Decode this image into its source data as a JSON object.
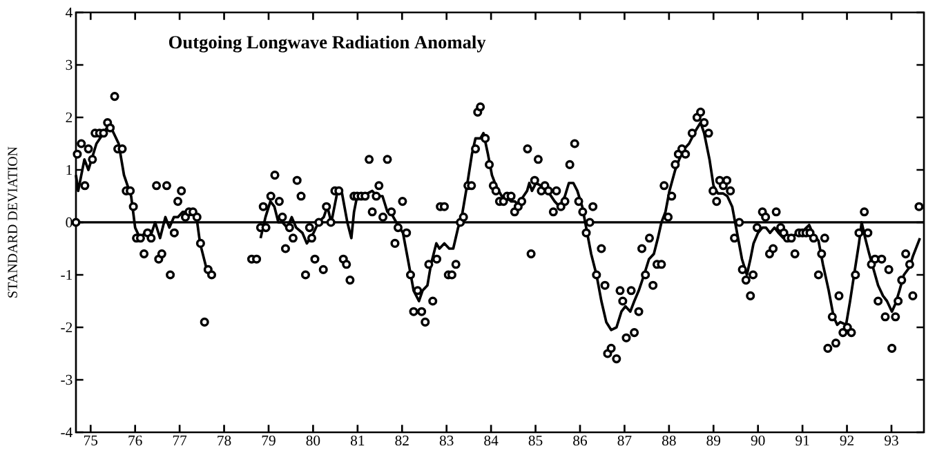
{
  "chart_data": {
    "type": "scatter",
    "title": "Outgoing Longwave Radiation Anomaly",
    "ylabel": "STANDARD DEVIATION",
    "xlim": [
      74.67,
      93.73
    ],
    "ylim": [
      -4,
      4
    ],
    "xticks": [
      75,
      76,
      77,
      78,
      79,
      80,
      81,
      82,
      83,
      84,
      85,
      86,
      87,
      88,
      89,
      90,
      91,
      92,
      93
    ],
    "yticks": [
      -4,
      -3,
      -2,
      -1,
      0,
      1,
      2,
      3,
      4
    ],
    "grid": false,
    "ref_lines": [
      {
        "axis": "y",
        "value": 0,
        "color": "#000000"
      }
    ],
    "series": [
      {
        "color": "#000000",
        "marker": "circle",
        "x": [
          74.67,
          74.7,
          74.79,
          74.87,
          74.95,
          75.04,
          75.1,
          75.2,
          75.29,
          75.38,
          75.44,
          75.54,
          75.61,
          75.71,
          75.8,
          75.89,
          75.96,
          76.03,
          76.12,
          76.2,
          76.28,
          76.36,
          76.48,
          76.53,
          76.6,
          76.71,
          76.79,
          76.88,
          76.96,
          77.04,
          77.13,
          77.21,
          77.3,
          77.39,
          77.47,
          77.56,
          77.64,
          77.72,
          78.62,
          78.73,
          78.82,
          78.88,
          78.94,
          79.05,
          79.14,
          79.24,
          79.31,
          79.38,
          79.47,
          79.55,
          79.64,
          79.73,
          79.83,
          79.92,
          79.97,
          80.04,
          80.13,
          80.23,
          80.3,
          80.4,
          80.49,
          80.58,
          80.68,
          80.75,
          80.83,
          80.92,
          80.99,
          81.08,
          81.17,
          81.26,
          81.33,
          81.42,
          81.48,
          81.57,
          81.67,
          81.76,
          81.84,
          81.91,
          82.01,
          82.1,
          82.19,
          82.26,
          82.35,
          82.44,
          82.52,
          82.6,
          82.69,
          82.78,
          82.86,
          82.95,
          83.04,
          83.12,
          83.21,
          83.31,
          83.38,
          83.48,
          83.56,
          83.65,
          83.7,
          83.76,
          83.87,
          83.96,
          84.05,
          84.11,
          84.19,
          84.28,
          84.36,
          84.45,
          84.53,
          84.61,
          84.69,
          84.82,
          84.9,
          84.98,
          85.06,
          85.13,
          85.21,
          85.29,
          85.4,
          85.47,
          85.57,
          85.66,
          85.77,
          85.88,
          85.97,
          86.06,
          86.14,
          86.22,
          86.29,
          86.37,
          86.48,
          86.56,
          86.62,
          86.7,
          86.82,
          86.9,
          86.96,
          87.04,
          87.15,
          87.22,
          87.32,
          87.39,
          87.47,
          87.56,
          87.64,
          87.73,
          87.83,
          87.89,
          87.98,
          88.06,
          88.14,
          88.21,
          88.29,
          88.37,
          88.52,
          88.63,
          88.71,
          88.79,
          88.89,
          88.99,
          89.07,
          89.14,
          89.22,
          89.3,
          89.38,
          89.47,
          89.58,
          89.65,
          89.73,
          89.83,
          89.89,
          89.98,
          90.1,
          90.17,
          90.26,
          90.34,
          90.41,
          90.51,
          90.58,
          90.66,
          90.75,
          90.83,
          90.92,
          91.0,
          91.08,
          91.17,
          91.25,
          91.36,
          91.43,
          91.5,
          91.57,
          91.67,
          91.75,
          91.82,
          91.91,
          92.01,
          92.1,
          92.19,
          92.27,
          92.39,
          92.47,
          92.55,
          92.63,
          92.7,
          92.78,
          92.86,
          92.94,
          93.01,
          93.09,
          93.15,
          93.23,
          93.32,
          93.41,
          93.48,
          93.62
        ],
        "values": [
          0,
          1.3,
          1.5,
          0.7,
          1.4,
          1.2,
          1.7,
          1.7,
          1.7,
          1.9,
          1.8,
          2.4,
          1.4,
          1.4,
          0.6,
          0.6,
          0.3,
          -0.3,
          -0.3,
          -0.6,
          -0.2,
          -0.3,
          0.7,
          -0.7,
          -0.6,
          0.7,
          -1.0,
          -0.2,
          0.4,
          0.6,
          0.1,
          0.2,
          0.2,
          0.1,
          -0.4,
          -1.9,
          -0.9,
          -1.0,
          -0.7,
          -0.7,
          -0.1,
          0.3,
          -0.1,
          0.5,
          0.9,
          0.4,
          0.1,
          -0.5,
          -0.1,
          -0.3,
          0.8,
          0.5,
          -1.0,
          -0.1,
          -0.3,
          -0.7,
          0.0,
          -0.9,
          0.3,
          0.0,
          0.6,
          0.6,
          -0.7,
          -0.8,
          -1.1,
          0.5,
          0.5,
          0.5,
          0.5,
          1.2,
          0.2,
          0.5,
          0.7,
          0.1,
          1.2,
          0.2,
          -0.4,
          -0.1,
          0.4,
          -0.2,
          -1.0,
          -1.7,
          -1.3,
          -1.7,
          -1.9,
          -0.8,
          -1.5,
          -0.7,
          0.3,
          0.3,
          -1.0,
          -1.0,
          -0.8,
          0.0,
          0.1,
          0.7,
          0.7,
          1.4,
          2.1,
          2.2,
          1.6,
          1.1,
          0.7,
          0.6,
          0.4,
          0.4,
          0.5,
          0.5,
          0.2,
          0.3,
          0.4,
          1.4,
          -0.6,
          0.8,
          1.2,
          0.6,
          0.7,
          0.6,
          0.2,
          0.6,
          0.3,
          0.4,
          1.1,
          1.5,
          0.4,
          0.2,
          -0.2,
          0.0,
          0.3,
          -1.0,
          -0.5,
          -1.2,
          -2.5,
          -2.4,
          -2.6,
          -1.3,
          -1.5,
          -2.2,
          -1.3,
          -2.1,
          -1.7,
          -0.5,
          -1.0,
          -0.3,
          -1.2,
          -0.8,
          -0.8,
          0.7,
          0.1,
          0.5,
          1.1,
          1.3,
          1.4,
          1.3,
          1.7,
          2.0,
          2.1,
          1.9,
          1.7,
          0.6,
          0.4,
          0.8,
          0.7,
          0.8,
          0.6,
          -0.3,
          0.0,
          -0.9,
          -1.1,
          -1.4,
          -1.0,
          -0.1,
          0.2,
          0.1,
          -0.6,
          -0.5,
          0.2,
          -0.1,
          -0.2,
          -0.3,
          -0.3,
          -0.6,
          -0.2,
          -0.2,
          -0.2,
          -0.2,
          -0.3,
          -1.0,
          -0.6,
          -0.3,
          -2.4,
          -1.8,
          -2.3,
          -1.4,
          -2.1,
          -2.0,
          -2.1,
          -1.0,
          -0.2,
          0.2,
          -0.2,
          -0.8,
          -0.7,
          -1.5,
          -0.7,
          -1.8,
          -0.9,
          -2.4,
          -1.8,
          -1.5,
          -1.1,
          -0.6,
          -0.8,
          -1.4,
          0.3
        ]
      },
      {
        "type": "line",
        "color": "#000000",
        "marker": "none",
        "line_style": "solid",
        "x": [
          74.67,
          74.72,
          74.86,
          74.95,
          75.13,
          75.29,
          75.4,
          75.49,
          75.63,
          75.75,
          75.91,
          76.0,
          76.11,
          76.22,
          76.33,
          76.45,
          76.56,
          76.68,
          76.77,
          76.87,
          76.96,
          77.07,
          77.15,
          77.3,
          77.38,
          77.46,
          77.61,
          77.69,
          78.2,
          78.82,
          78.93,
          79.04,
          79.13,
          79.22,
          79.31,
          79.42,
          79.52,
          79.62,
          79.76,
          79.86,
          80.01,
          80.12,
          80.24,
          80.32,
          80.41,
          80.55,
          80.64,
          80.77,
          80.86,
          80.92,
          80.99,
          81.11,
          81.22,
          81.33,
          81.44,
          81.56,
          81.67,
          81.74,
          81.87,
          82.02,
          82.13,
          82.26,
          82.38,
          82.46,
          82.57,
          82.65,
          82.77,
          82.84,
          82.95,
          83.06,
          83.15,
          83.26,
          83.34,
          83.46,
          83.57,
          83.65,
          83.76,
          83.83,
          83.93,
          84.02,
          84.11,
          84.24,
          84.31,
          84.39,
          84.45,
          84.53,
          84.61,
          84.73,
          84.81,
          84.86,
          84.92,
          85.01,
          85.12,
          85.27,
          85.43,
          85.54,
          85.66,
          85.75,
          85.85,
          85.94,
          86.05,
          86.16,
          86.25,
          86.37,
          86.48,
          86.59,
          86.7,
          86.82,
          86.93,
          87.02,
          87.13,
          87.22,
          87.32,
          87.44,
          87.55,
          87.66,
          87.75,
          87.83,
          87.92,
          88.01,
          88.14,
          88.23,
          88.34,
          88.45,
          88.6,
          88.71,
          88.79,
          88.91,
          89.0,
          89.1,
          89.22,
          89.31,
          89.42,
          89.53,
          89.64,
          89.75,
          89.83,
          89.9,
          90.0,
          90.1,
          90.18,
          90.27,
          90.37,
          90.46,
          90.57,
          90.69,
          90.8,
          90.92,
          91.03,
          91.15,
          91.25,
          91.36,
          91.46,
          91.59,
          91.7,
          91.78,
          91.85,
          91.98,
          92.07,
          92.16,
          92.27,
          92.33,
          92.41,
          92.5,
          92.6,
          92.7,
          92.81,
          92.9,
          93.01,
          93.09,
          93.18,
          93.28,
          93.41,
          93.48,
          93.64
        ],
        "values": [
          0.9,
          0.6,
          1.2,
          1.0,
          1.5,
          1.7,
          1.85,
          1.75,
          1.5,
          0.9,
          0.5,
          -0.1,
          -0.3,
          -0.2,
          -0.3,
          0.0,
          -0.3,
          0.1,
          -0.1,
          0.1,
          0.1,
          0.2,
          0.2,
          0.2,
          0.1,
          -0.4,
          -0.9,
          -1.0,
          null,
          -0.3,
          0.1,
          0.4,
          0.3,
          0.0,
          0.0,
          -0.1,
          0.1,
          -0.1,
          -0.2,
          -0.4,
          -0.2,
          0.0,
          0.1,
          0.3,
          0.0,
          0.6,
          0.6,
          0.0,
          -0.3,
          0.2,
          0.5,
          0.5,
          0.55,
          0.6,
          0.5,
          0.5,
          0.2,
          0.2,
          0.0,
          -0.2,
          -0.7,
          -1.3,
          -1.5,
          -1.3,
          -1.2,
          -0.8,
          -0.4,
          -0.5,
          -0.4,
          -0.5,
          -0.5,
          -0.1,
          0.1,
          0.7,
          1.3,
          1.6,
          1.6,
          1.7,
          1.3,
          0.9,
          0.7,
          0.5,
          0.4,
          0.45,
          0.4,
          0.4,
          0.35,
          0.5,
          0.6,
          0.75,
          0.6,
          0.75,
          0.7,
          0.6,
          0.4,
          0.3,
          0.5,
          0.75,
          0.75,
          0.6,
          0.3,
          -0.2,
          -0.6,
          -1.0,
          -1.5,
          -1.9,
          -2.05,
          -2.0,
          -1.7,
          -1.6,
          -1.7,
          -1.5,
          -1.3,
          -1.0,
          -0.7,
          -0.6,
          -0.3,
          0.0,
          0.2,
          0.6,
          1.0,
          1.2,
          1.4,
          1.5,
          1.75,
          1.9,
          1.7,
          1.2,
          0.7,
          0.55,
          0.55,
          0.5,
          0.3,
          -0.2,
          -0.7,
          -1.0,
          -0.7,
          -0.4,
          -0.2,
          -0.1,
          -0.1,
          -0.2,
          -0.1,
          -0.2,
          -0.3,
          -0.3,
          -0.25,
          -0.2,
          -0.15,
          -0.05,
          -0.25,
          -0.35,
          -0.8,
          -1.3,
          -1.8,
          -1.95,
          -1.9,
          -1.95,
          -1.5,
          -1.0,
          -0.4,
          0.0,
          -0.3,
          -0.6,
          -0.9,
          -1.2,
          -1.4,
          -1.5,
          -1.7,
          -1.55,
          -1.3,
          -1.0,
          -0.85,
          -0.65,
          -0.3
        ]
      }
    ]
  }
}
